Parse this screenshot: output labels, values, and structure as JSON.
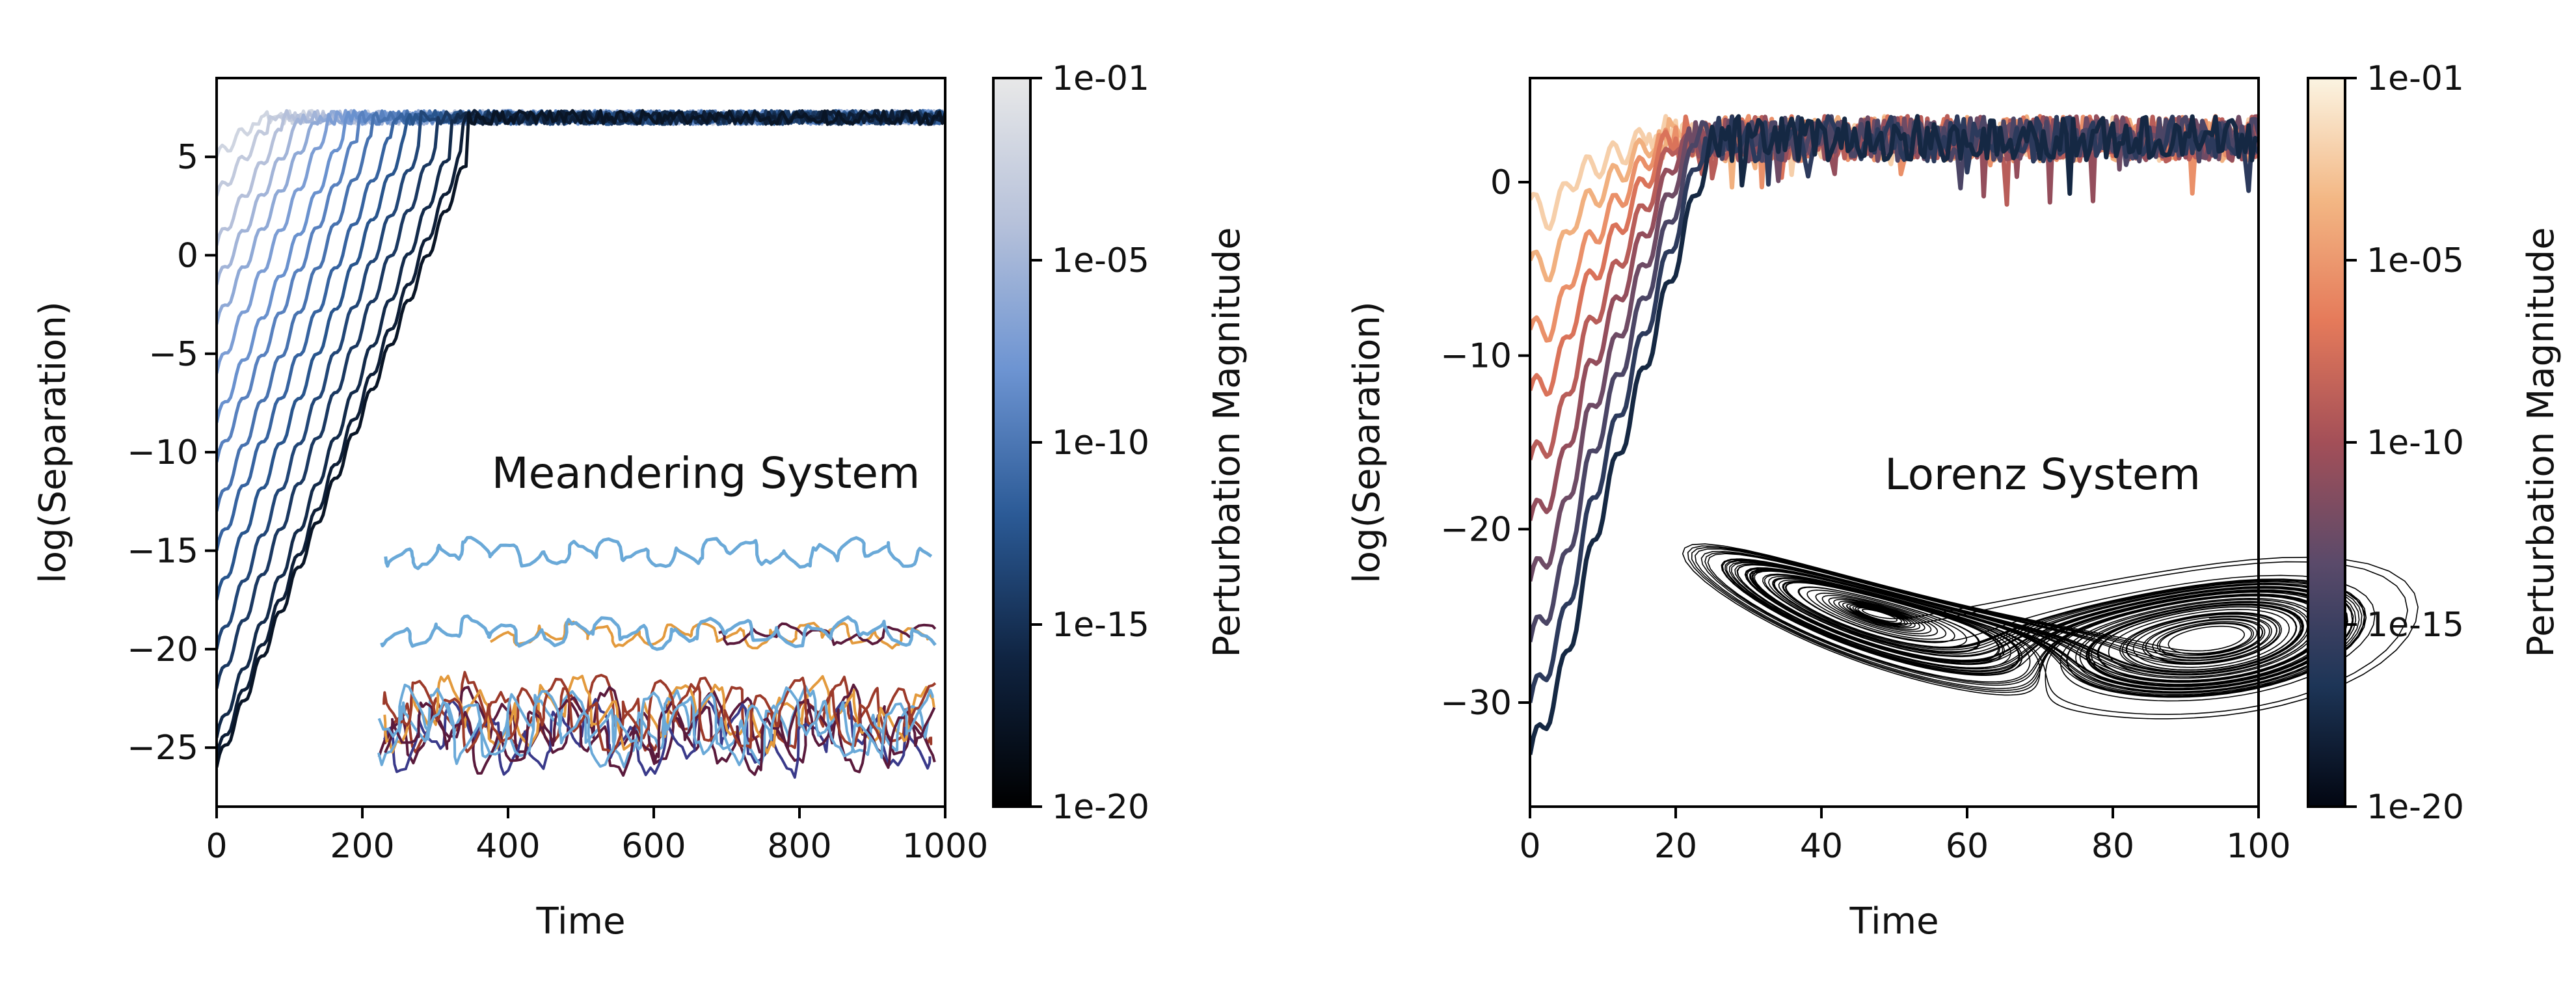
{
  "chart_data": [
    {
      "type": "line",
      "title": "",
      "xlabel": "Time",
      "ylabel": "log(Separation)",
      "xlim": [
        0,
        1000
      ],
      "ylim": [
        -28,
        9
      ],
      "xticks": [
        0,
        200,
        400,
        600,
        800,
        1000
      ],
      "yticks": [
        5,
        0,
        -5,
        -10,
        -15,
        -20,
        -25
      ],
      "grid": false,
      "annotation": "Meandering System",
      "saturation_level": 7.0,
      "series": [
        {
          "values": [
            [
              0,
              -26.0
            ],
            [
              345,
              5.0
            ]
          ]
        },
        {
          "values": [
            [
              0,
              -25.5
            ],
            [
              335,
              5.0
            ]
          ]
        },
        {
          "values": [
            [
              0,
              -24.5
            ],
            [
              320,
              5.3
            ]
          ]
        },
        {
          "values": [
            [
              0,
              -22.0
            ],
            [
              300,
              5.6
            ]
          ]
        },
        {
          "values": [
            [
              0,
              -20.0
            ],
            [
              280,
              5.8
            ]
          ]
        },
        {
          "values": [
            [
              0,
              -17.5
            ],
            [
              260,
              6.0
            ]
          ]
        },
        {
          "values": [
            [
              0,
              -15.0
            ],
            [
              240,
              6.1
            ]
          ]
        },
        {
          "values": [
            [
              0,
              -13.0
            ],
            [
              215,
              6.2
            ]
          ]
        },
        {
          "values": [
            [
              0,
              -10.5
            ],
            [
              195,
              6.3
            ]
          ]
        },
        {
          "values": [
            [
              0,
              -8.5
            ],
            [
              175,
              6.3
            ]
          ]
        },
        {
          "values": [
            [
              0,
              -6.0
            ],
            [
              150,
              6.4
            ]
          ]
        },
        {
          "values": [
            [
              0,
              -3.5
            ],
            [
              130,
              6.5
            ]
          ]
        },
        {
          "values": [
            [
              0,
              -1.5
            ],
            [
              110,
              6.5
            ]
          ]
        },
        {
          "values": [
            [
              0,
              0.5
            ],
            [
              90,
              6.5
            ]
          ]
        },
        {
          "values": [
            [
              0,
              3.0
            ],
            [
              70,
              6.6
            ]
          ]
        },
        {
          "values": [
            [
              0,
              5.0
            ],
            [
              50,
              6.7
            ]
          ]
        }
      ],
      "colorbar": {
        "label": "Perturbation Magnitude",
        "ticks": [
          "1e-01",
          "1e-05",
          "1e-10",
          "1e-15",
          "1e-20"
        ],
        "colors": [
          "#000000",
          "#0f2340",
          "#2b5a96",
          "#6d94d2",
          "#b6c1da",
          "#e8e8e8"
        ]
      },
      "inset": {
        "description_colors": [
          "#6aa9d8",
          "#e39a3d",
          "#5a1a3c",
          "#9c3a2a",
          "#3a3a8a"
        ]
      }
    },
    {
      "type": "line",
      "title": "",
      "xlabel": "Time",
      "ylabel": "log(Separation)",
      "xlim": [
        0,
        100
      ],
      "ylim": [
        -36,
        6
      ],
      "xticks": [
        0,
        20,
        40,
        60,
        80,
        100
      ],
      "yticks": [
        0,
        -10,
        -20,
        -30
      ],
      "grid": false,
      "annotation": "Lorenz System",
      "saturation_level": 2.5,
      "series": [
        {
          "values": [
            [
              0,
              -33.0
            ],
            [
              25,
              2.5
            ]
          ]
        },
        {
          "values": [
            [
              0,
              -30.0
            ],
            [
              24,
              2.5
            ]
          ]
        },
        {
          "values": [
            [
              0,
              -26.5
            ],
            [
              23,
              2.5
            ]
          ]
        },
        {
          "values": [
            [
              0,
              -23.0
            ],
            [
              22,
              2.5
            ]
          ]
        },
        {
          "values": [
            [
              0,
              -19.5
            ],
            [
              21,
              2.5
            ]
          ]
        },
        {
          "values": [
            [
              0,
              -16.0
            ],
            [
              20,
              2.5
            ]
          ]
        },
        {
          "values": [
            [
              0,
              -12.0
            ],
            [
              19,
              2.5
            ]
          ]
        },
        {
          "values": [
            [
              0,
              -8.5
            ],
            [
              18,
              2.5
            ]
          ]
        },
        {
          "values": [
            [
              0,
              -4.5
            ],
            [
              17,
              2.5
            ]
          ]
        },
        {
          "values": [
            [
              0,
              -1.0
            ],
            [
              16,
              2.5
            ]
          ]
        }
      ],
      "colorbar": {
        "label": "Perturbation Magnitude",
        "ticks": [
          "1e-01",
          "1e-05",
          "1e-10",
          "1e-15",
          "1e-20"
        ],
        "colors": [
          "#020611",
          "#1d3557",
          "#5a4a6a",
          "#a34f58",
          "#e57a5a",
          "#f3b784",
          "#fbf4e2"
        ]
      }
    }
  ]
}
